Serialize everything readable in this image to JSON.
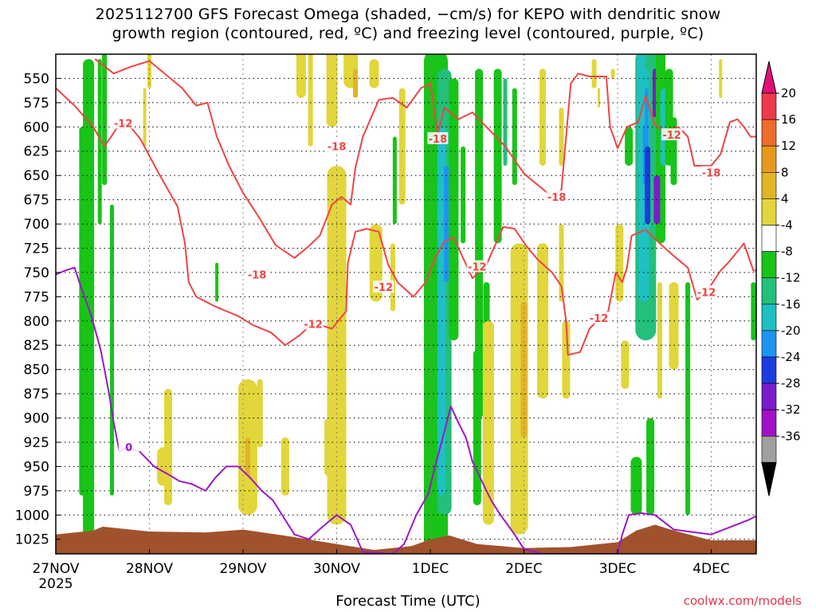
{
  "header": {
    "title_line1": "2025112700 GFS Forecast Omega (shaded, −cm/s) for KEPO with dendritic snow",
    "title_line2": "growth region (contoured, red, ºC) and freezing level (contoured, purple, ºC)"
  },
  "footer": {
    "xlabel": "Forecast Time (UTC)",
    "credit": "coolwx.com/models"
  },
  "chart_data": {
    "type": "time-height cross section",
    "xlabel": "Forecast Time (UTC)",
    "ylabel": "",
    "x_ticks": [
      "27NOV",
      "28NOV",
      "29NOV",
      "30NOV",
      "1DEC",
      "2DEC",
      "3DEC",
      "4DEC"
    ],
    "x_year": "2025",
    "x_range_days": [
      0,
      7.5
    ],
    "y_ticks": [
      550,
      575,
      600,
      625,
      650,
      675,
      700,
      725,
      750,
      775,
      800,
      825,
      850,
      875,
      900,
      925,
      950,
      975,
      1000,
      1025
    ],
    "y_range_hpa": [
      1040,
      525
    ],
    "colorbar": {
      "unit": "-cm/s",
      "labels": [
        "20",
        "16",
        "12",
        "8",
        "4",
        "-4",
        "-8",
        "-12",
        "-16",
        "-20",
        "-24",
        "-28",
        "-32",
        "-36"
      ],
      "colors": [
        "#ec3a4a",
        "#ee6b2a",
        "#e89820",
        "#e2b426",
        "#e2d63a",
        "#ffffff",
        "#18c418",
        "#22c07a",
        "#1ec0c4",
        "#1e94f0",
        "#1c3ce0",
        "#7a1ccc",
        "#a012c4",
        "#a0a0a0"
      ],
      "top_color": "#e0107a",
      "bottom_color": "#000000"
    },
    "contour_labels": [
      {
        "text": "-12",
        "day": 0.72,
        "p": 596
      },
      {
        "text": "-18",
        "day": 3.0,
        "p": 620
      },
      {
        "text": "-18",
        "day": 4.08,
        "p": 612
      },
      {
        "text": "-18",
        "day": 5.35,
        "p": 672
      },
      {
        "text": "-12",
        "day": 6.58,
        "p": 608
      },
      {
        "text": "-18",
        "day": 7.0,
        "p": 647
      },
      {
        "text": "-18",
        "day": 2.15,
        "p": 752
      },
      {
        "text": "-12",
        "day": 3.5,
        "p": 765
      },
      {
        "text": "-12",
        "day": 4.5,
        "p": 744
      },
      {
        "text": "-12",
        "day": 2.75,
        "p": 803
      },
      {
        "text": "-12",
        "day": 5.8,
        "p": 797
      },
      {
        "text": "-12",
        "day": 6.95,
        "p": 770
      },
      {
        "text": "0",
        "day": 0.78,
        "p": 930
      }
    ],
    "dgz_warm_edge_minus12": [
      [
        0.0,
        560
      ],
      [
        0.2,
        578
      ],
      [
        0.4,
        600
      ],
      [
        0.52,
        620
      ],
      [
        0.62,
        606
      ],
      [
        0.68,
        596
      ],
      [
        0.78,
        598
      ],
      [
        0.9,
        612
      ],
      [
        1.1,
        648
      ],
      [
        1.3,
        682
      ],
      [
        1.38,
        720
      ],
      [
        1.42,
        760
      ],
      [
        1.5,
        775
      ],
      [
        1.7,
        785
      ],
      [
        1.95,
        795
      ],
      [
        2.1,
        804
      ],
      [
        2.3,
        812
      ],
      [
        2.45,
        825
      ],
      [
        2.6,
        815
      ],
      [
        2.75,
        802
      ],
      [
        2.95,
        808
      ],
      [
        3.1,
        790
      ],
      [
        3.12,
        740
      ],
      [
        3.2,
        708
      ],
      [
        3.32,
        705
      ],
      [
        3.45,
        708
      ],
      [
        3.55,
        742
      ],
      [
        3.65,
        760
      ],
      [
        3.82,
        775
      ],
      [
        3.95,
        760
      ],
      [
        4.05,
        735
      ],
      [
        4.15,
        718
      ],
      [
        4.25,
        714
      ],
      [
        4.35,
        735
      ],
      [
        4.45,
        756
      ],
      [
        4.6,
        742
      ],
      [
        4.7,
        720
      ],
      [
        4.78,
        703
      ],
      [
        4.9,
        705
      ],
      [
        5.02,
        722
      ],
      [
        5.15,
        737
      ],
      [
        5.3,
        750
      ],
      [
        5.4,
        764
      ],
      [
        5.45,
        800
      ],
      [
        5.47,
        835
      ],
      [
        5.6,
        832
      ],
      [
        5.7,
        808
      ],
      [
        5.8,
        798
      ],
      [
        5.9,
        790
      ],
      [
        5.98,
        750
      ],
      [
        6.05,
        760
      ],
      [
        6.1,
        745
      ],
      [
        6.15,
        712
      ],
      [
        6.3,
        706
      ],
      [
        6.45,
        720
      ],
      [
        6.6,
        733
      ],
      [
        6.75,
        745
      ],
      [
        6.85,
        778
      ],
      [
        6.95,
        770
      ],
      [
        7.1,
        748
      ],
      [
        7.2,
        738
      ],
      [
        7.35,
        720
      ],
      [
        7.45,
        748
      ],
      [
        7.5,
        748
      ]
    ],
    "dgz_cold_edge_minus18": [
      [
        0.42,
        530
      ],
      [
        0.62,
        545
      ],
      [
        0.8,
        538
      ],
      [
        1.0,
        532
      ],
      [
        1.2,
        548
      ],
      [
        1.35,
        560
      ],
      [
        1.5,
        578
      ],
      [
        1.62,
        575
      ],
      [
        1.72,
        610
      ],
      [
        1.85,
        640
      ],
      [
        2.0,
        668
      ],
      [
        2.15,
        690
      ],
      [
        2.35,
        722
      ],
      [
        2.55,
        735
      ],
      [
        2.7,
        723
      ],
      [
        2.82,
        712
      ],
      [
        2.95,
        680
      ],
      [
        3.05,
        672
      ],
      [
        3.15,
        680
      ],
      [
        3.2,
        642
      ],
      [
        3.28,
        610
      ],
      [
        3.45,
        572
      ],
      [
        3.6,
        570
      ],
      [
        3.75,
        580
      ],
      [
        3.9,
        560
      ],
      [
        4.0,
        555
      ],
      [
        4.08,
        608
      ],
      [
        4.15,
        580
      ],
      [
        4.3,
        592
      ],
      [
        4.45,
        585
      ],
      [
        4.6,
        600
      ],
      [
        4.8,
        620
      ],
      [
        5.0,
        648
      ],
      [
        5.15,
        660
      ],
      [
        5.3,
        672
      ],
      [
        5.4,
        665
      ],
      [
        5.5,
        555
      ],
      [
        5.58,
        545
      ],
      [
        5.7,
        548
      ],
      [
        5.88,
        548
      ],
      [
        5.92,
        600
      ],
      [
        6.0,
        622
      ],
      [
        6.1,
        600
      ],
      [
        6.22,
        595
      ],
      [
        6.3,
        568
      ],
      [
        6.4,
        598
      ],
      [
        6.5,
        604
      ],
      [
        6.65,
        600
      ],
      [
        6.75,
        610
      ],
      [
        6.82,
        640
      ],
      [
        6.9,
        640
      ],
      [
        7.0,
        640
      ],
      [
        7.1,
        628
      ],
      [
        7.2,
        595
      ],
      [
        7.28,
        592
      ],
      [
        7.35,
        600
      ],
      [
        7.42,
        610
      ],
      [
        7.5,
        610
      ]
    ],
    "freezing_level_0C": [
      [
        0.0,
        752
      ],
      [
        0.1,
        748
      ],
      [
        0.2,
        745
      ],
      [
        0.28,
        768
      ],
      [
        0.38,
        795
      ],
      [
        0.48,
        830
      ],
      [
        0.56,
        870
      ],
      [
        0.62,
        905
      ],
      [
        0.68,
        935
      ],
      [
        0.76,
        930
      ],
      [
        0.9,
        935
      ],
      [
        1.05,
        950
      ],
      [
        1.2,
        958
      ],
      [
        1.32,
        965
      ],
      [
        1.45,
        968
      ],
      [
        1.6,
        975
      ],
      [
        1.7,
        962
      ],
      [
        1.82,
        950
      ],
      [
        1.95,
        950
      ],
      [
        2.08,
        962
      ],
      [
        2.2,
        975
      ],
      [
        2.32,
        985
      ],
      [
        2.45,
        1005
      ],
      [
        2.55,
        1020
      ],
      [
        2.7,
        1025
      ],
      [
        2.85,
        1012
      ],
      [
        3.0,
        1000
      ],
      [
        3.15,
        1010
      ],
      [
        3.28,
        1038
      ],
      [
        3.6,
        1040
      ],
      [
        3.72,
        1030
      ],
      [
        3.85,
        1000
      ],
      [
        3.98,
        978
      ],
      [
        4.05,
        950
      ],
      [
        4.12,
        925
      ],
      [
        4.22,
        888
      ],
      [
        4.3,
        905
      ],
      [
        4.38,
        920
      ],
      [
        4.45,
        945
      ],
      [
        4.55,
        965
      ],
      [
        4.65,
        985
      ],
      [
        4.75,
        1000
      ],
      [
        4.9,
        1020
      ],
      [
        5.0,
        1035
      ],
      [
        5.2,
        1040
      ],
      [
        6.0,
        1040
      ],
      [
        6.05,
        1020
      ],
      [
        6.12,
        1000
      ],
      [
        6.25,
        998
      ],
      [
        6.4,
        1000
      ],
      [
        6.6,
        1015
      ],
      [
        7.0,
        1020
      ],
      [
        7.4,
        1005
      ],
      [
        7.5,
        1000
      ]
    ]
  }
}
